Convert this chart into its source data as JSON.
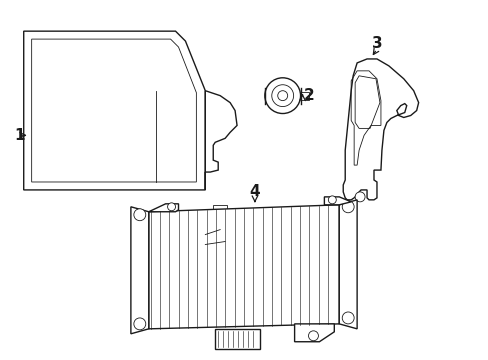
{
  "bg_color": "#ffffff",
  "line_color": "#1a1a1a",
  "line_width": 1.0,
  "thin_line": 0.6,
  "figsize": [
    4.89,
    3.6
  ],
  "dpi": 100
}
